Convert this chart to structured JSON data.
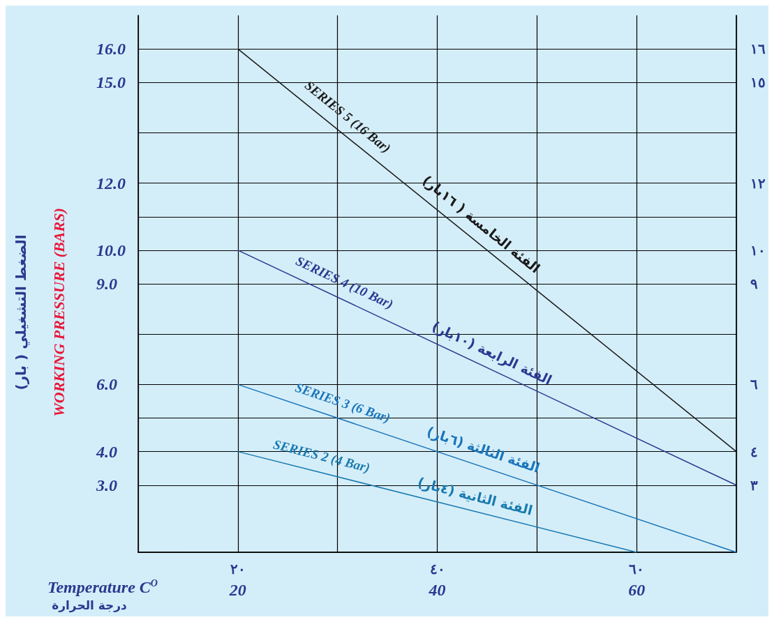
{
  "chart_data": {
    "type": "line",
    "xlabel": "Temperature C$^{O}$",
    "ylabel": "WORKING PRESSURE (BARS)",
    "annotations": [
      "الضغط التشغيلي ( بار)",
      "درجة الحرارة",
      {
        "text": "الفئة الخامسة ( ١٦بار)",
        "x": 43.4,
        "y": 10.4
      },
      {
        "text": "الفئة الرابعة (١٠بار)",
        "x": 44.8,
        "y": 6.5
      },
      {
        "text": "الفئة الثالثة (٦بار)",
        "x": 44.1,
        "y": 3.6
      },
      {
        "text": "الفئة الثانية (٤بار)",
        "x": 43.4,
        "y": 2.2
      }
    ],
    "series": [
      {
        "name": "SERIES 5 (16 Bar)",
        "color": "#1a1a1a",
        "x": [
          20,
          70
        ],
        "values": [
          16,
          4
        ]
      },
      {
        "name": "SERIES 4 (10 Bar)",
        "color": "#2b3990",
        "x": [
          20,
          70
        ],
        "values": [
          10,
          3
        ]
      },
      {
        "name": "SERIES 3 (6 Bar)",
        "color": "#1b75bb",
        "x": [
          20,
          70
        ],
        "values": [
          6,
          1
        ]
      },
      {
        "name": "SERIES 2 (4 Bar)",
        "color": "#1a7ab0",
        "x": [
          20,
          60
        ],
        "values": [
          4,
          1
        ]
      }
    ],
    "xlim": [
      10,
      70
    ],
    "xticks": [
      {
        "value": 10,
        "label": null
      },
      20,
      {
        "value": 30,
        "label": null
      },
      40,
      {
        "value": 50,
        "label": null
      },
      60,
      {
        "value": 70,
        "label": null
      }
    ],
    "x2lim": [
      10,
      70
    ],
    "x2ticks": [
      {
        "value": 20,
        "label": "٢٠"
      },
      {
        "value": 40,
        "label": "٤٠"
      },
      {
        "value": 60,
        "label": "٦٠"
      }
    ],
    "ylim": [
      1,
      17
    ],
    "yticks": [
      {
        "value": 3,
        "label": "3.0"
      },
      {
        "value": 4,
        "label": "4.0"
      },
      {
        "value": 5,
        "label": null
      },
      {
        "value": 6,
        "label": "6.0"
      },
      {
        "value": 7.5,
        "label": null
      },
      {
        "value": 9,
        "label": "9.0"
      },
      {
        "value": 10,
        "label": "10.0"
      },
      {
        "value": 11,
        "label": null
      },
      {
        "value": 12,
        "label": "12.0"
      },
      {
        "value": 13.5,
        "label": null
      },
      {
        "value": 15,
        "label": "15.0"
      },
      {
        "value": 16,
        "label": "16.0"
      }
    ],
    "y2lim": [
      1,
      17
    ],
    "y2ticks": [
      {
        "value": 3,
        "label": "٣"
      },
      {
        "value": 4,
        "label": "٤"
      },
      {
        "value": 6,
        "label": "٦"
      },
      {
        "value": 9,
        "label": "٩"
      },
      {
        "value": 10,
        "label": "١٠"
      },
      {
        "value": 12,
        "label": "١٢"
      },
      {
        "value": 15,
        "label": "١٥"
      },
      {
        "value": 16,
        "label": "١٦"
      }
    ],
    "grid": true,
    "legend": false,
    "marker": "none",
    "line_style": "solid"
  }
}
